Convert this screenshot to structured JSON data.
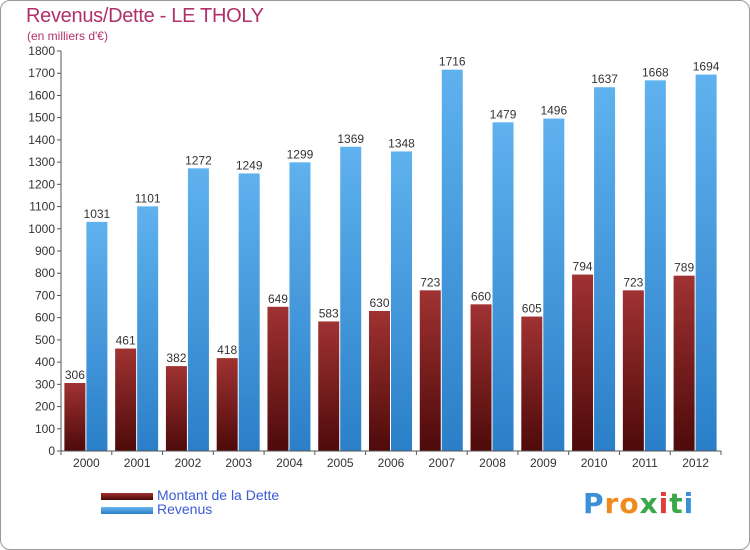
{
  "chart_data": {
    "type": "bar",
    "title": "Revenus/Dette - LE THOLY",
    "subtitle": "(en milliers d'€)",
    "categories": [
      "2000",
      "2001",
      "2002",
      "2003",
      "2004",
      "2005",
      "2006",
      "2007",
      "2008",
      "2009",
      "2010",
      "2011",
      "2012"
    ],
    "series": [
      {
        "name": "Montant de la Dette",
        "color": "#7a1a1a",
        "values": [
          306,
          461,
          382,
          418,
          649,
          583,
          630,
          723,
          660,
          605,
          794,
          723,
          789
        ]
      },
      {
        "name": "Revenus",
        "color": "#4a9fe0",
        "values": [
          1031,
          1101,
          1272,
          1249,
          1299,
          1369,
          1348,
          1716,
          1479,
          1496,
          1637,
          1668,
          1694
        ]
      }
    ],
    "ylim": [
      0,
      1800
    ],
    "ytick_step": 100,
    "grid": false,
    "legend_position": "bottom-left"
  },
  "brand": {
    "letters": [
      "P",
      "r",
      "o",
      "x",
      "i",
      "t",
      "i"
    ],
    "colors": [
      "#3b8fd8",
      "#f08a1c",
      "#f08a1c",
      "#3aa84a",
      "#e03a3a",
      "#3aa84a",
      "#3b8fd8"
    ]
  }
}
